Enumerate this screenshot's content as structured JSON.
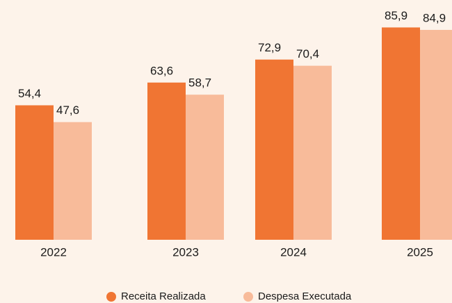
{
  "chart_data": {
    "type": "bar",
    "categories": [
      "2022",
      "2023",
      "2024",
      "2025"
    ],
    "series": [
      {
        "name": "Receita Realizada",
        "color": "#f07533",
        "values": [
          54.4,
          63.6,
          72.9,
          85.9
        ],
        "value_labels": [
          "54,4",
          "63,6",
          "72,9",
          "85,9"
        ]
      },
      {
        "name": "Despesa Executada",
        "color": "#f8bb9a",
        "values": [
          47.6,
          58.7,
          70.4,
          84.9
        ],
        "value_labels": [
          "47,6",
          "58,7",
          "70,4",
          "84,9"
        ]
      }
    ],
    "ylim": [
      0,
      97
    ]
  }
}
